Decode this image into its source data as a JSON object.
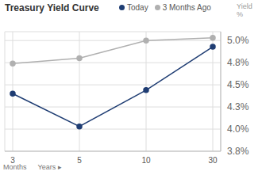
{
  "chart_data": {
    "type": "line",
    "title": "Treasury Yield Curve",
    "ylabel": "Yield %",
    "annotations": [
      "Months",
      "Years ▸"
    ],
    "categories": [
      "3",
      "5",
      "10",
      "30"
    ],
    "series": [
      {
        "name": "Today",
        "color": "#1f3d73",
        "values": [
          4.4,
          4.03,
          4.44,
          4.93
        ],
        "marker": "circle"
      },
      {
        "name": "3 Months Ago",
        "color": "#b0b0b0",
        "values": [
          4.74,
          4.8,
          5.0,
          5.03
        ],
        "marker": "circle"
      }
    ],
    "ylim": [
      3.75,
      5.1
    ],
    "yticks": [
      {
        "value": 3.75,
        "label": "3.8%"
      },
      {
        "value": 4.0,
        "label": "4.0%"
      },
      {
        "value": 4.25,
        "label": "4.3%"
      },
      {
        "value": 4.5,
        "label": "4.5%"
      },
      {
        "value": 4.75,
        "label": "4.8%"
      },
      {
        "value": 5.0,
        "label": "5.0%"
      }
    ],
    "grid": true,
    "legend": "top"
  }
}
